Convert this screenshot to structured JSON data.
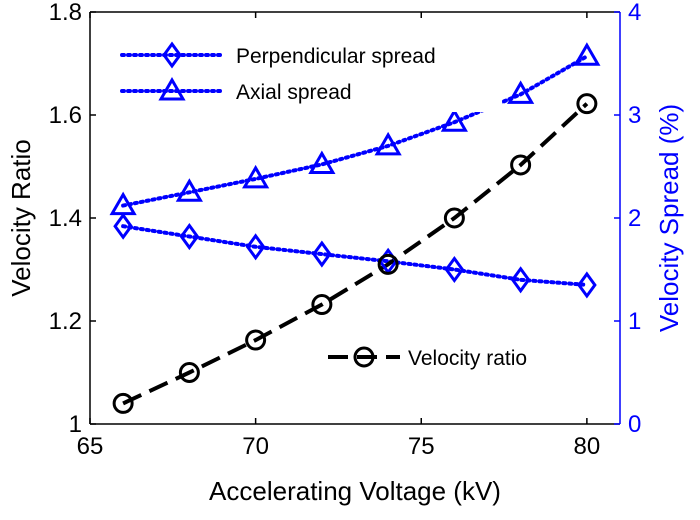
{
  "chart_data": {
    "type": "line",
    "xlabel": "Accelerating Voltage (kV)",
    "ylabel_left": "Velocity Ratio",
    "ylabel_right": "Velocity Spread (%)",
    "xlim": [
      65,
      81
    ],
    "ylim_left": [
      1,
      1.8
    ],
    "ylim_right": [
      0,
      4
    ],
    "x_ticks": [
      65,
      70,
      75,
      80
    ],
    "y_left_ticks": [
      1,
      1.2,
      1.4,
      1.6,
      1.8
    ],
    "y_right_ticks": [
      0,
      1,
      2,
      3,
      4
    ],
    "x_tick_labels": [
      "65",
      "70",
      "75",
      "80"
    ],
    "y_left_tick_labels": [
      "1",
      "1.2",
      "1.4",
      "1.6",
      "1.8"
    ],
    "y_right_tick_labels": [
      "0",
      "1",
      "2",
      "3",
      "4"
    ],
    "grid": false,
    "series": [
      {
        "name": "Perpendicular spread",
        "axis": "right",
        "color": "#0000ff",
        "marker": "diamond",
        "line_style": "dotted",
        "x": [
          66,
          68,
          70,
          72,
          74,
          76,
          78,
          80
        ],
        "values": [
          1.92,
          1.82,
          1.72,
          1.65,
          1.58,
          1.5,
          1.4,
          1.35
        ]
      },
      {
        "name": "Axial spread",
        "axis": "right",
        "color": "#0000ff",
        "marker": "triangle",
        "line_style": "dotted",
        "x": [
          66,
          68,
          70,
          72,
          74,
          76,
          78,
          80
        ],
        "values": [
          2.12,
          2.25,
          2.38,
          2.52,
          2.7,
          2.93,
          3.2,
          3.57
        ]
      },
      {
        "name": "Velocity ratio",
        "axis": "left",
        "color": "#000000",
        "marker": "circle",
        "line_style": "dashed",
        "x": [
          66,
          68,
          70,
          72,
          74,
          76,
          78,
          80
        ],
        "values": [
          1.04,
          1.1,
          1.163,
          1.232,
          1.31,
          1.4,
          1.503,
          1.622
        ]
      }
    ],
    "legend_upper": {
      "placement": "top-left",
      "entries": [
        "Perpendicular spread",
        "Axial spread"
      ]
    },
    "legend_lower": {
      "placement": "bottom-right",
      "entries": [
        "Velocity ratio"
      ]
    }
  }
}
